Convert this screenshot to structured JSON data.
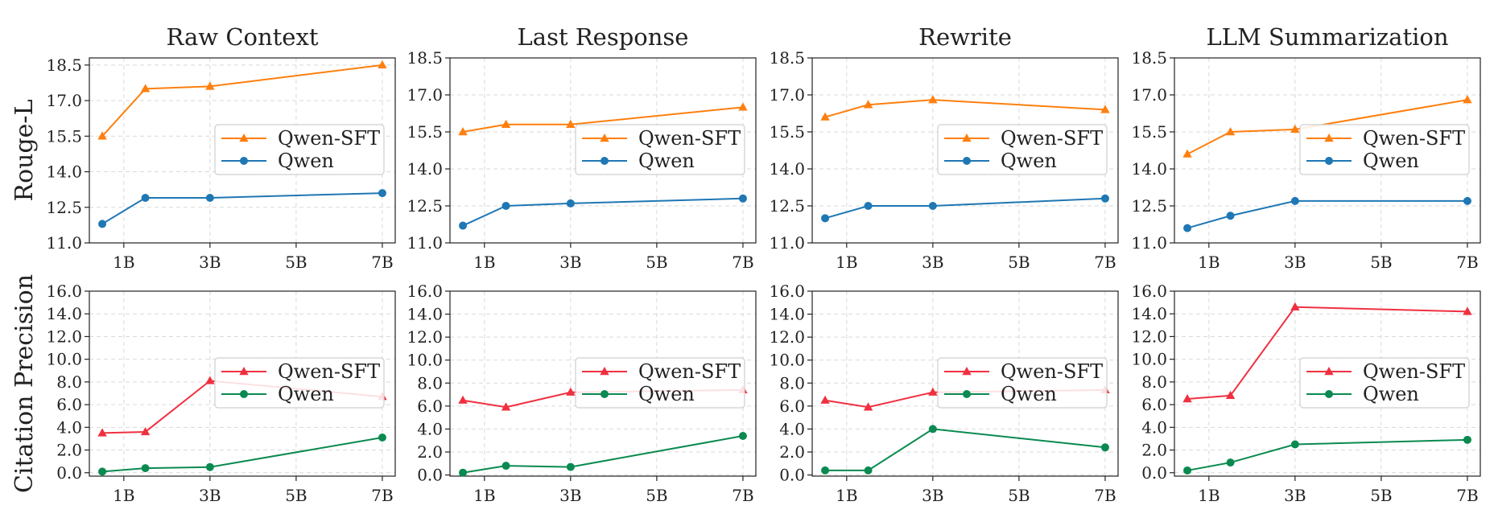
{
  "chart_data": [
    {
      "type": "line",
      "title": "Raw Context",
      "ylabel": "Rouge-L",
      "xlabel": "",
      "x": [
        0.5,
        1.5,
        3,
        7
      ],
      "xticks": [
        1,
        3,
        5,
        7
      ],
      "xtick_labels": [
        "1B",
        "3B",
        "5B",
        "7B"
      ],
      "ylim": [
        11.0,
        18.8
      ],
      "yticks": [
        11.0,
        12.5,
        14.0,
        15.5,
        17.0,
        18.5
      ],
      "ytick_labels": [
        "11.0",
        "12.5",
        "14.0",
        "15.5",
        "17.0",
        "18.5"
      ],
      "grid": true,
      "legend": "center-right",
      "series": [
        {
          "name": "Qwen-SFT",
          "color": "#ff7f0e",
          "marker": "triangle",
          "values": [
            15.5,
            17.5,
            17.6,
            18.5
          ]
        },
        {
          "name": "Qwen",
          "color": "#1f77b4",
          "marker": "circle",
          "values": [
            11.8,
            12.9,
            12.9,
            13.1
          ]
        }
      ]
    },
    {
      "type": "line",
      "title": "Last Response",
      "ylabel": "",
      "xlabel": "",
      "x": [
        0.5,
        1.5,
        3,
        7
      ],
      "xticks": [
        1,
        3,
        5,
        7
      ],
      "xtick_labels": [
        "1B",
        "3B",
        "5B",
        "7B"
      ],
      "ylim": [
        11.0,
        18.5
      ],
      "yticks": [
        11.0,
        12.5,
        14.0,
        15.5,
        17.0,
        18.5
      ],
      "ytick_labels": [
        "11.0",
        "12.5",
        "14.0",
        "15.5",
        "17.0",
        "18.5"
      ],
      "grid": true,
      "legend": "center-right",
      "series": [
        {
          "name": "Qwen-SFT",
          "color": "#ff7f0e",
          "marker": "triangle",
          "values": [
            15.5,
            15.8,
            15.8,
            16.5
          ]
        },
        {
          "name": "Qwen",
          "color": "#1f77b4",
          "marker": "circle",
          "values": [
            11.7,
            12.5,
            12.6,
            12.8
          ]
        }
      ]
    },
    {
      "type": "line",
      "title": "Rewrite",
      "ylabel": "",
      "xlabel": "",
      "x": [
        0.5,
        1.5,
        3,
        7
      ],
      "xticks": [
        1,
        3,
        5,
        7
      ],
      "xtick_labels": [
        "1B",
        "3B",
        "5B",
        "7B"
      ],
      "ylim": [
        11.0,
        18.5
      ],
      "yticks": [
        11.0,
        12.5,
        14.0,
        15.5,
        17.0,
        18.5
      ],
      "ytick_labels": [
        "11.0",
        "12.5",
        "14.0",
        "15.5",
        "17.0",
        "18.5"
      ],
      "grid": true,
      "legend": "center-right",
      "series": [
        {
          "name": "Qwen-SFT",
          "color": "#ff7f0e",
          "marker": "triangle",
          "values": [
            16.1,
            16.6,
            16.8,
            16.4
          ]
        },
        {
          "name": "Qwen",
          "color": "#1f77b4",
          "marker": "circle",
          "values": [
            12.0,
            12.5,
            12.5,
            12.8
          ]
        }
      ]
    },
    {
      "type": "line",
      "title": "LLM Summarization",
      "ylabel": "",
      "xlabel": "",
      "x": [
        0.5,
        1.5,
        3,
        7
      ],
      "xticks": [
        1,
        3,
        5,
        7
      ],
      "xtick_labels": [
        "1B",
        "3B",
        "5B",
        "7B"
      ],
      "ylim": [
        11.0,
        18.5
      ],
      "yticks": [
        11.0,
        12.5,
        14.0,
        15.5,
        17.0,
        18.5
      ],
      "ytick_labels": [
        "11.0",
        "12.5",
        "14.0",
        "15.5",
        "17.0",
        "18.5"
      ],
      "grid": true,
      "legend": "center-right",
      "series": [
        {
          "name": "Qwen-SFT",
          "color": "#ff7f0e",
          "marker": "triangle",
          "values": [
            14.6,
            15.5,
            15.6,
            16.8
          ]
        },
        {
          "name": "Qwen",
          "color": "#1f77b4",
          "marker": "circle",
          "values": [
            11.6,
            12.1,
            12.7,
            12.7
          ]
        }
      ]
    },
    {
      "type": "line",
      "title": "",
      "ylabel": "Citation Precision",
      "xlabel": "",
      "x": [
        0.5,
        1.5,
        3,
        7
      ],
      "xticks": [
        1,
        3,
        5,
        7
      ],
      "xtick_labels": [
        "1B",
        "3B",
        "5B",
        "7B"
      ],
      "ylim": [
        -0.3,
        16.0
      ],
      "yticks": [
        0,
        2,
        4,
        6,
        8,
        10,
        12,
        14,
        16
      ],
      "ytick_labels": [
        "0.0",
        "2.0",
        "4.0",
        "6.0",
        "8.0",
        "10.0",
        "12.0",
        "14.0",
        "16.0"
      ],
      "grid": true,
      "legend": "center-right",
      "series": [
        {
          "name": "Qwen-SFT",
          "color": "#f03040",
          "marker": "triangle",
          "values": [
            3.5,
            3.6,
            8.1,
            6.7
          ]
        },
        {
          "name": "Qwen",
          "color": "#0a8a50",
          "marker": "circle",
          "values": [
            0.1,
            0.4,
            0.5,
            3.1
          ]
        }
      ]
    },
    {
      "type": "line",
      "title": "",
      "ylabel": "",
      "xlabel": "",
      "x": [
        0.5,
        1.5,
        3,
        7
      ],
      "xticks": [
        1,
        3,
        5,
        7
      ],
      "xtick_labels": [
        "1B",
        "3B",
        "5B",
        "7B"
      ],
      "ylim": [
        -0.1,
        16.0
      ],
      "yticks": [
        0,
        2,
        4,
        6,
        8,
        10,
        12,
        14,
        16
      ],
      "ytick_labels": [
        "0.0",
        "2.0",
        "4.0",
        "6.0",
        "8.0",
        "10.0",
        "12.0",
        "14.0",
        "16.0"
      ],
      "grid": true,
      "legend": "center-right",
      "series": [
        {
          "name": "Qwen-SFT",
          "color": "#f03040",
          "marker": "triangle",
          "values": [
            6.5,
            5.9,
            7.2,
            7.4
          ]
        },
        {
          "name": "Qwen",
          "color": "#0a8a50",
          "marker": "circle",
          "values": [
            0.2,
            0.8,
            0.7,
            3.4
          ]
        }
      ]
    },
    {
      "type": "line",
      "title": "",
      "ylabel": "",
      "xlabel": "",
      "x": [
        0.5,
        1.5,
        3,
        7
      ],
      "xticks": [
        1,
        3,
        5,
        7
      ],
      "xtick_labels": [
        "1B",
        "3B",
        "5B",
        "7B"
      ],
      "ylim": [
        -0.1,
        16.0
      ],
      "yticks": [
        0,
        2,
        4,
        6,
        8,
        10,
        12,
        14,
        16
      ],
      "ytick_labels": [
        "0.0",
        "2.0",
        "4.0",
        "6.0",
        "8.0",
        "10.0",
        "12.0",
        "14.0",
        "16.0"
      ],
      "grid": true,
      "legend": "center-right",
      "series": [
        {
          "name": "Qwen-SFT",
          "color": "#f03040",
          "marker": "triangle",
          "values": [
            6.5,
            5.9,
            7.2,
            7.4
          ]
        },
        {
          "name": "Qwen",
          "color": "#0a8a50",
          "marker": "circle",
          "values": [
            0.4,
            0.4,
            4.0,
            2.4
          ]
        }
      ]
    },
    {
      "type": "line",
      "title": "",
      "ylabel": "",
      "xlabel": "",
      "x": [
        0.5,
        1.5,
        3,
        7
      ],
      "xticks": [
        1,
        3,
        5,
        7
      ],
      "xtick_labels": [
        "1B",
        "3B",
        "5B",
        "7B"
      ],
      "ylim": [
        -0.3,
        16.0
      ],
      "yticks": [
        0,
        2,
        4,
        6,
        8,
        10,
        12,
        14,
        16
      ],
      "ytick_labels": [
        "0.0",
        "2.0",
        "4.0",
        "6.0",
        "8.0",
        "10.0",
        "12.0",
        "14.0",
        "16.0"
      ],
      "grid": true,
      "legend": "center-right",
      "series": [
        {
          "name": "Qwen-SFT",
          "color": "#f03040",
          "marker": "triangle",
          "values": [
            6.5,
            6.8,
            14.6,
            14.2
          ]
        },
        {
          "name": "Qwen",
          "color": "#0a8a50",
          "marker": "circle",
          "values": [
            0.2,
            0.9,
            2.5,
            2.9
          ]
        }
      ]
    }
  ]
}
